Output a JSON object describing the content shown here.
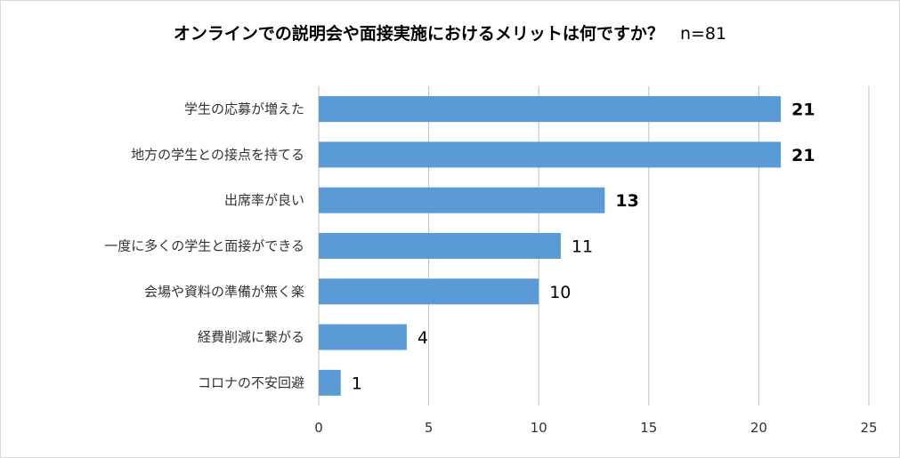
{
  "title": "オンラインでの説明会や面接実施におけるメリットは何ですか？",
  "sample_size": "n=81",
  "colors": {
    "bar": "#5b9bd5",
    "grid": "#bfbfbf"
  },
  "chart_data": {
    "type": "bar",
    "orientation": "horizontal",
    "categories": [
      "学生の応募が増えた",
      "地方の学生との接点を持てる",
      "出席率が良い",
      "一度に多くの学生と面接ができる",
      "会場や資料の準備が無く楽",
      "経費削減に繋がる",
      "コロナの不安回避"
    ],
    "values": [
      21,
      21,
      13,
      11,
      10,
      4,
      1
    ],
    "bold_values": [
      true,
      true,
      true,
      false,
      false,
      false,
      false
    ],
    "xlim": [
      0,
      25
    ],
    "xticks": [
      0,
      5,
      10,
      15,
      20,
      25
    ],
    "grid": true,
    "legend": "none"
  }
}
